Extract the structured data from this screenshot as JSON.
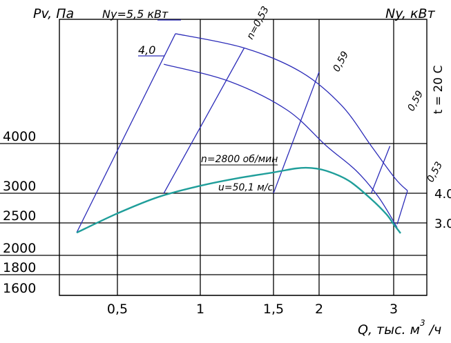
{
  "chart_data": {
    "type": "line",
    "title": "",
    "ylabel_left": "Pv, Па",
    "ylabel_right": "Ny, кВт",
    "xlabel": "Q, тыс. м",
    "xlabel_exp": "3",
    "xlabel_tail": "/ч",
    "temperature_label": "t = 20 С",
    "x_ticks": [
      "0,5",
      "1",
      "1,5",
      "2",
      "3"
    ],
    "x_tick_values": [
      0.5,
      1,
      1.5,
      2,
      3
    ],
    "y_ticks": [
      "4000",
      "3000",
      "2500",
      "2000",
      "1800",
      "1600"
    ],
    "y_tick_values": [
      4000,
      3000,
      2500,
      2000,
      1800,
      1600
    ],
    "right_ticks": [
      "4.0",
      "3.0"
    ],
    "pressure_curve": {
      "label": "n=2800 об/мин",
      "points": [
        [
          0.25,
          2350
        ],
        [
          0.5,
          2660
        ],
        [
          0.75,
          2940
        ],
        [
          1.0,
          3150
        ],
        [
          1.25,
          3300
        ],
        [
          1.5,
          3420
        ],
        [
          1.75,
          3500
        ],
        [
          1.9,
          3510
        ],
        [
          2.1,
          3450
        ],
        [
          2.4,
          3250
        ],
        [
          2.7,
          2900
        ],
        [
          2.9,
          2650
        ],
        [
          3.0,
          2480
        ],
        [
          3.1,
          2340
        ]
      ]
    },
    "power_curves": [
      {
        "label": "Ny=5,5 кВт",
        "points": [
          [
            0.85,
            5150
          ],
          [
            1.3,
            5000
          ],
          [
            1.8,
            4750
          ],
          [
            2.3,
            4400
          ],
          [
            2.7,
            3950
          ],
          [
            3.02,
            3300
          ],
          [
            3.2,
            3050
          ]
        ]
      },
      {
        "label": "4,0",
        "points": [
          [
            0.78,
            4830
          ],
          [
            1.2,
            4650
          ],
          [
            1.65,
            4350
          ],
          [
            2.1,
            3950
          ],
          [
            2.5,
            3450
          ],
          [
            2.8,
            2930
          ],
          [
            3.05,
            2430
          ]
        ]
      }
    ],
    "efficiency_lines": [
      {
        "label": "n=0,53",
        "points": [
          [
            0.25,
            2350
          ],
          [
            0.85,
            5150
          ]
        ]
      },
      {
        "label": "0,53",
        "points": [
          [
            0.78,
            3000
          ],
          [
            1.3,
            5000
          ]
        ]
      },
      {
        "label": "0,59",
        "points": [
          [
            1.5,
            3000
          ],
          [
            2.0,
            4750
          ]
        ]
      },
      {
        "label": "0,59",
        "points": [
          [
            2.7,
            3000
          ],
          [
            2.95,
            3950
          ]
        ]
      },
      {
        "label": "0,53",
        "points": [
          [
            3.05,
            2480
          ],
          [
            3.2,
            3050
          ]
        ]
      }
    ],
    "annotations": [
      "u=50,1 м/с"
    ]
  }
}
